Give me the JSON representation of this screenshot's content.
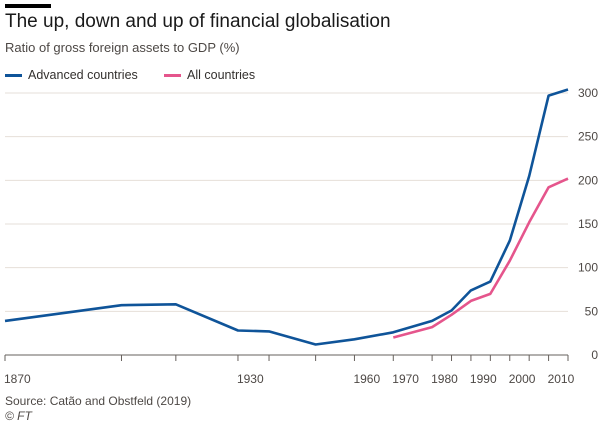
{
  "header": {
    "title": "The up, down and up of financial globalisation",
    "subtitle": "Ratio of gross foreign assets to GDP (%)"
  },
  "footer": {
    "source": "Source: Catão and Obstfeld (2019)",
    "copyright": "© FT"
  },
  "colors": {
    "advanced": "#0f5499",
    "all": "#e5558c",
    "grid": "#e6dfd8",
    "axis": "#66605c"
  },
  "chart_data": {
    "type": "line",
    "title": "The up, down and up of financial globalisation",
    "subtitle": "Ratio of gross foreign assets to GDP (%)",
    "xlabel": "",
    "ylabel": "",
    "xlim": [
      1870,
      2015
    ],
    "ylim": [
      0,
      300
    ],
    "y_ticks": [
      0,
      50,
      100,
      150,
      200,
      250,
      300
    ],
    "y_axis_side": "right",
    "x_tick_labels": [
      1870,
      1930,
      1960,
      1970,
      1980,
      1990,
      2000,
      2010
    ],
    "x_tick_marks": [
      1870,
      1900,
      1914,
      1930,
      1938,
      1950,
      1960,
      1970,
      1980,
      1985,
      1990,
      1995,
      2000,
      2005,
      2010,
      2015
    ],
    "x_tick_positions": [
      1870,
      1900,
      1914,
      1930,
      1938,
      1950,
      1960,
      1970,
      1980,
      1985,
      1990,
      1995,
      2000,
      2005,
      2010,
      2015
    ],
    "grid": true,
    "legend_position": "top-left",
    "series": [
      {
        "name": "Advanced countries",
        "color": "#0f5499",
        "points": [
          {
            "x": 1870,
            "y": 39
          },
          {
            "x": 1900,
            "y": 57
          },
          {
            "x": 1914,
            "y": 58
          },
          {
            "x": 1930,
            "y": 28
          },
          {
            "x": 1938,
            "y": 27
          },
          {
            "x": 1950,
            "y": 12
          },
          {
            "x": 1960,
            "y": 18
          },
          {
            "x": 1970,
            "y": 26
          },
          {
            "x": 1980,
            "y": 39
          },
          {
            "x": 1985,
            "y": 51
          },
          {
            "x": 1990,
            "y": 74
          },
          {
            "x": 1995,
            "y": 84
          },
          {
            "x": 2000,
            "y": 131
          },
          {
            "x": 2005,
            "y": 205
          },
          {
            "x": 2010,
            "y": 297
          },
          {
            "x": 2015,
            "y": 304
          }
        ]
      },
      {
        "name": "All countries",
        "color": "#e5558c",
        "points": [
          {
            "x": 1970,
            "y": 20
          },
          {
            "x": 1980,
            "y": 32
          },
          {
            "x": 1985,
            "y": 46
          },
          {
            "x": 1990,
            "y": 62
          },
          {
            "x": 1995,
            "y": 70
          },
          {
            "x": 2000,
            "y": 108
          },
          {
            "x": 2005,
            "y": 152
          },
          {
            "x": 2010,
            "y": 192
          },
          {
            "x": 2015,
            "y": 202
          }
        ]
      }
    ]
  }
}
